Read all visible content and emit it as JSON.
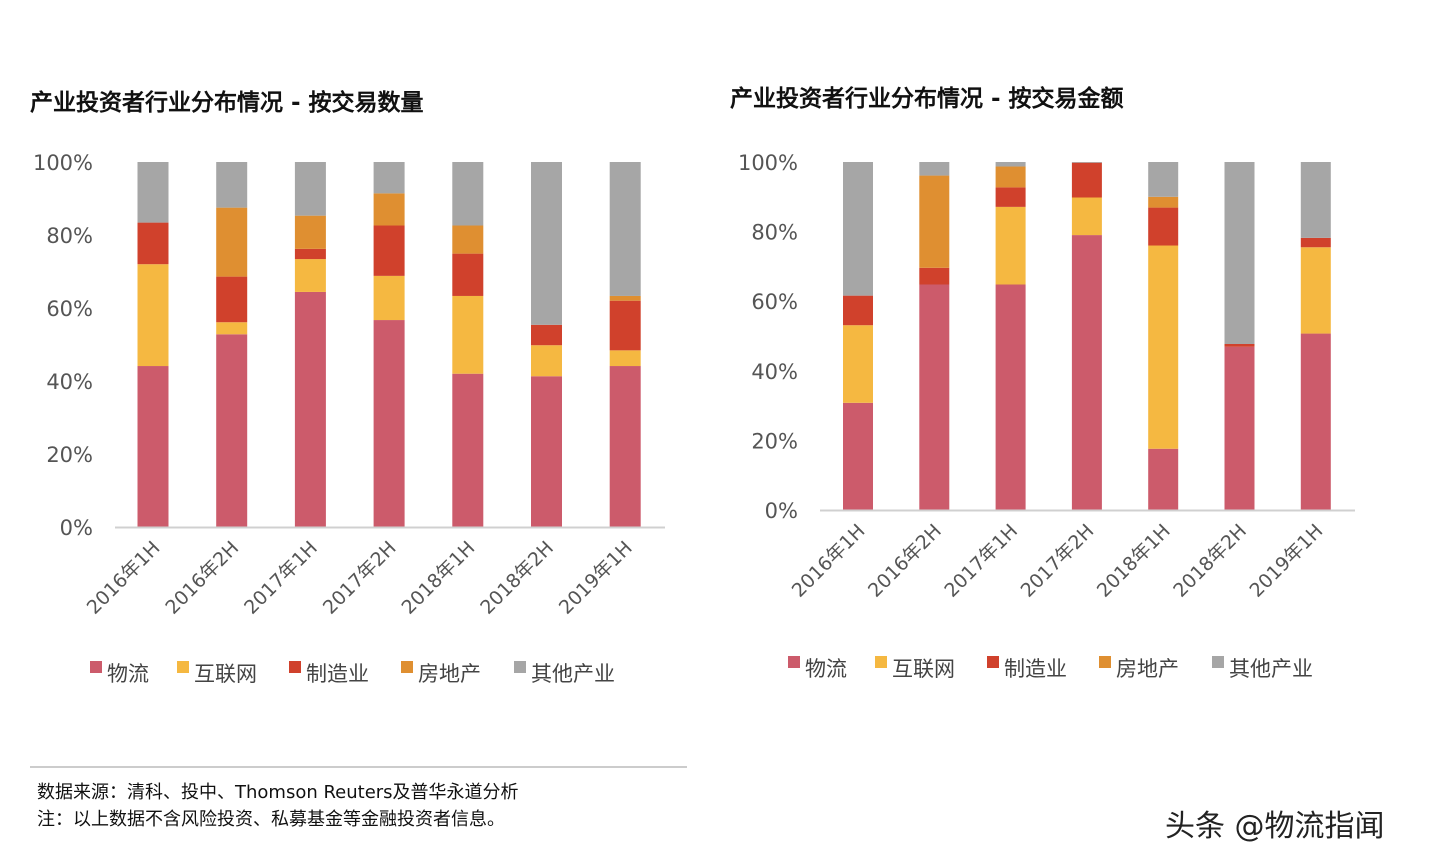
{
  "colors": {
    "物流": "#CC5B6B",
    "互联网": "#F5B841",
    "制造业": "#D0412C",
    "房地产": "#DF8F31",
    "其他产业": "#A6A6A6"
  },
  "chart_data": [
    {
      "type": "bar",
      "stacked": true,
      "title": "产业投资者行业分布情况 - 按交易数量",
      "xlabel": "",
      "ylabel": "",
      "ylim": [
        0,
        100
      ],
      "yticks": [
        "0%",
        "20%",
        "40%",
        "60%",
        "80%",
        "100%"
      ],
      "legend": "bottom",
      "grid": false,
      "categories": [
        "2016年1H",
        "2016年2H",
        "2017年1H",
        "2017年2H",
        "2018年1H",
        "2018年2H",
        "2019年1H"
      ],
      "series": [
        {
          "name": "物流",
          "values": [
            44.1,
            52.8,
            64.4,
            56.7,
            42.0,
            41.3,
            44.1
          ]
        },
        {
          "name": "互联网",
          "values": [
            27.9,
            3.3,
            9.0,
            12.1,
            21.3,
            8.5,
            4.3
          ]
        },
        {
          "name": "制造业",
          "values": [
            11.4,
            12.5,
            2.8,
            13.8,
            11.6,
            5.6,
            13.6
          ]
        },
        {
          "name": "房地产",
          "values": [
            0,
            18.9,
            9.1,
            8.8,
            7.7,
            0,
            1.3
          ]
        },
        {
          "name": "其他产业",
          "values": [
            16.6,
            12.5,
            14.7,
            8.6,
            17.4,
            44.6,
            36.7
          ]
        }
      ]
    },
    {
      "type": "bar",
      "stacked": true,
      "title": "产业投资者行业分布情况 - 按交易金额",
      "xlabel": "",
      "ylabel": "",
      "ylim": [
        0,
        100
      ],
      "yticks": [
        "0%",
        "20%",
        "40%",
        "60%",
        "80%",
        "100%"
      ],
      "legend": "bottom",
      "grid": false,
      "categories": [
        "2016年1H",
        "2016年2H",
        "2017年1H",
        "2017年2H",
        "2018年1H",
        "2018年2H",
        "2019年1H"
      ],
      "series": [
        {
          "name": "物流",
          "values": [
            30.8,
            64.8,
            64.8,
            79.0,
            17.6,
            46.9,
            50.7
          ]
        },
        {
          "name": "互联网",
          "values": [
            22.3,
            0,
            22.3,
            10.8,
            58.4,
            0,
            24.8
          ]
        },
        {
          "name": "制造业",
          "values": [
            8.5,
            4.8,
            5.6,
            10.0,
            10.9,
            0.8,
            2.7
          ]
        },
        {
          "name": "房地产",
          "values": [
            0,
            26.5,
            6.0,
            0,
            3.1,
            0,
            0
          ]
        },
        {
          "name": "其他产业",
          "values": [
            38.4,
            3.9,
            1.3,
            0.2,
            10.0,
            52.3,
            21.8
          ]
        }
      ]
    }
  ],
  "footnote": {
    "source": "数据来源：清科、投中、Thomson Reuters及普华永道分析",
    "note": "注：以上数据不含风险投资、私募基金等金融投资者信息。"
  },
  "watermark": "头条 @物流指闻"
}
